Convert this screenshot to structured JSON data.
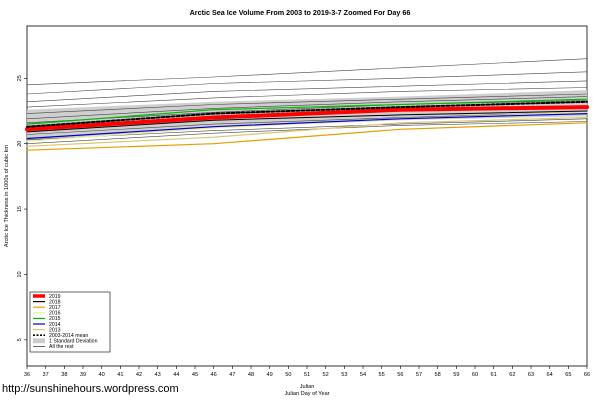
{
  "chart_data": {
    "type": "line",
    "title": "Arctic Sea Ice Volume From 2003 to 2019-3-7 Zoomed For Day 66",
    "ylabel": "Arctic Ice Thickness in 1000s of cubic km",
    "xlabel": "Julian",
    "xlabel2": "Julian Day of Year",
    "xlim": [
      36,
      66
    ],
    "ylim": [
      3,
      29
    ],
    "x_ticks": [
      36,
      37,
      38,
      39,
      40,
      41,
      42,
      43,
      44,
      45,
      46,
      47,
      48,
      49,
      50,
      51,
      52,
      53,
      54,
      55,
      56,
      57,
      58,
      59,
      60,
      61,
      62,
      63,
      64,
      65,
      66
    ],
    "y_ticks": [
      5,
      10,
      15,
      20,
      25
    ],
    "grid": false,
    "legend_placement": "bottom-left",
    "legend": [
      {
        "label": "2019",
        "color": "#ff0000",
        "style": "thick"
      },
      {
        "label": "2018",
        "color": "#000000",
        "style": "solid"
      },
      {
        "label": "2017",
        "color": "#e69f00",
        "style": "solid"
      },
      {
        "label": "2016",
        "color": "#eeee99",
        "style": "solid"
      },
      {
        "label": "2015",
        "color": "#00bb00",
        "style": "solid"
      },
      {
        "label": "2014",
        "color": "#0000cc",
        "style": "solid"
      },
      {
        "label": "2013",
        "color": "#d8c870",
        "style": "solid"
      },
      {
        "label": "2003-2014 mean",
        "color": "#000000",
        "style": "dashed"
      },
      {
        "label": "1 Standard Deviation",
        "color": "#cccccc",
        "style": "band"
      },
      {
        "label": "All the rest",
        "color": "#000000",
        "style": "thin"
      }
    ],
    "series": [
      {
        "name": "2019",
        "color": "#ff0000",
        "width": 4,
        "y": [
          21.1,
          22.0,
          22.6,
          22.8
        ]
      },
      {
        "name": "2018",
        "color": "#000000",
        "width": 1,
        "y": [
          20.9,
          21.8,
          22.2,
          22.5
        ]
      },
      {
        "name": "2017",
        "color": "#e69f00",
        "width": 1.2,
        "y": [
          19.5,
          20.0,
          21.1,
          21.6
        ]
      },
      {
        "name": "2016",
        "color": "#eeee99",
        "width": 1.2,
        "y": [
          20.2,
          21.2,
          21.9,
          22.4
        ]
      },
      {
        "name": "2015",
        "color": "#00bb00",
        "width": 1.2,
        "y": [
          21.5,
          22.6,
          23.0,
          23.4
        ]
      },
      {
        "name": "2014",
        "color": "#0000cc",
        "width": 1.2,
        "y": [
          20.4,
          21.3,
          21.9,
          22.3
        ]
      },
      {
        "name": "2013",
        "color": "#d8c870",
        "width": 1.2,
        "y": [
          19.8,
          20.5,
          21.6,
          22.0
        ]
      },
      {
        "name": "2003-2014 mean",
        "color": "#000000",
        "width": 2,
        "dash": true,
        "y": [
          21.3,
          22.3,
          22.8,
          23.2
        ]
      }
    ],
    "series_x": [
      36,
      46,
      56,
      66
    ],
    "sd_band": {
      "lower": [
        20.2,
        21.2,
        21.8,
        22.1
      ],
      "upper": [
        22.6,
        23.2,
        23.6,
        24.1
      ]
    },
    "other_years": [
      [
        24.5,
        25.1,
        25.8,
        26.5
      ],
      [
        23.8,
        24.6,
        25.0,
        25.5
      ],
      [
        23.2,
        24.0,
        24.4,
        24.8
      ],
      [
        22.8,
        23.5,
        24.0,
        24.3
      ],
      [
        22.3,
        23.0,
        23.4,
        23.8
      ],
      [
        21.9,
        22.7,
        23.2,
        23.6
      ],
      [
        21.6,
        22.4,
        23.0,
        23.3
      ],
      [
        20.7,
        21.5,
        22.0,
        22.4
      ],
      [
        20.3,
        21.0,
        21.5,
        21.9
      ],
      [
        20.0,
        20.8,
        21.4,
        21.7
      ]
    ]
  },
  "credit": "http://sunshinehours.wordpress.com"
}
